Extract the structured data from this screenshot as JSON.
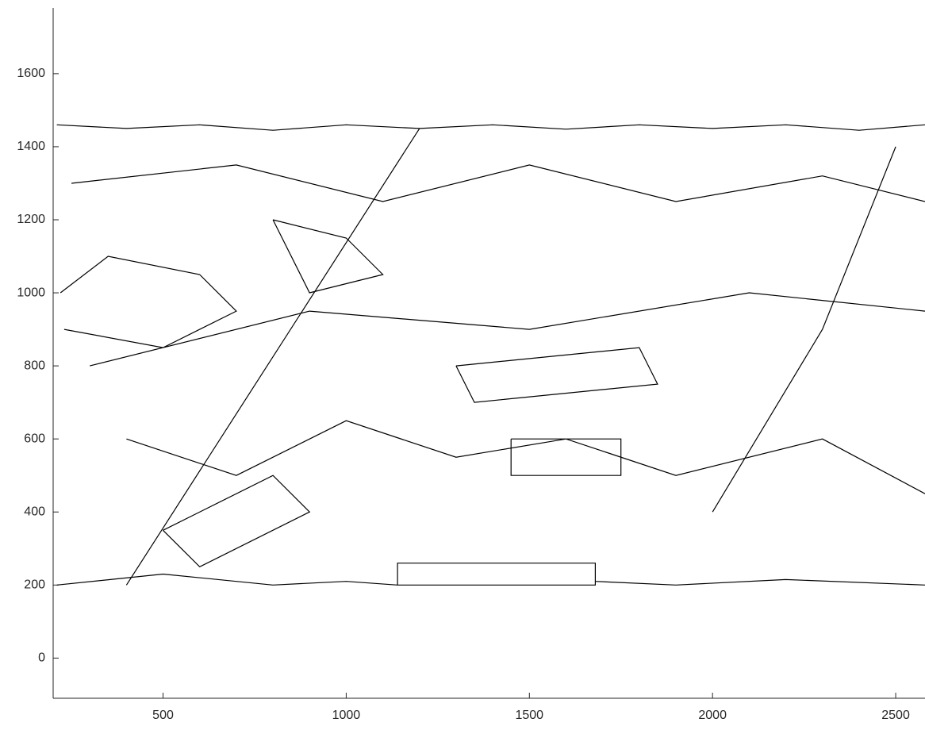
{
  "chart_data": {
    "type": "line",
    "color": "#000000",
    "x": [
      210,
      400,
      600,
      800,
      1000,
      1200,
      1400,
      1600,
      1800,
      2000,
      2200,
      2400,
      2580,
      null,
      220,
      350,
      600,
      700,
      500,
      230,
      null,
      210,
      500,
      800,
      1000,
      1140,
      null,
      1140,
      1680,
      1680,
      1140,
      1140,
      null,
      1680,
      1900,
      2200,
      2580,
      null,
      300,
      900,
      1500,
      2100,
      2580,
      null,
      400,
      700,
      1000,
      1300,
      1600,
      1900,
      2300,
      2580,
      null,
      250,
      700,
      1100,
      1500,
      1900,
      2300,
      2580,
      null,
      1450,
      1750,
      1750,
      1450,
      1450,
      null,
      800,
      1000,
      1100,
      900,
      800,
      null,
      400,
      1200,
      null,
      1300,
      1800,
      1850,
      1350,
      1300,
      null,
      2000,
      2300,
      2500,
      null,
      500,
      800,
      900,
      600,
      500
    ],
    "values": [
      1460,
      1450,
      1460,
      1445,
      1460,
      1450,
      1460,
      1448,
      1460,
      1450,
      1460,
      1445,
      1460,
      null,
      1000,
      1100,
      1050,
      950,
      850,
      900,
      null,
      200,
      230,
      200,
      210,
      200,
      null,
      200,
      200,
      260,
      260,
      200,
      null,
      210,
      200,
      215,
      200,
      null,
      800,
      950,
      900,
      1000,
      950,
      null,
      600,
      500,
      650,
      550,
      600,
      500,
      600,
      450,
      null,
      1300,
      1350,
      1250,
      1350,
      1250,
      1320,
      1250,
      null,
      600,
      600,
      500,
      500,
      600,
      null,
      1200,
      1150,
      1050,
      1000,
      1200,
      null,
      200,
      1450,
      null,
      800,
      850,
      750,
      700,
      800,
      null,
      400,
      900,
      1400,
      null,
      350,
      500,
      400,
      250,
      350
    ],
    "xlim": [
      200,
      2580
    ],
    "ylim": [
      -110,
      1780
    ],
    "xticks": [
      500,
      1000,
      1500,
      2000,
      2500
    ],
    "yticks": [
      0,
      200,
      400,
      600,
      800,
      1000,
      1200,
      1400,
      1600
    ]
  }
}
